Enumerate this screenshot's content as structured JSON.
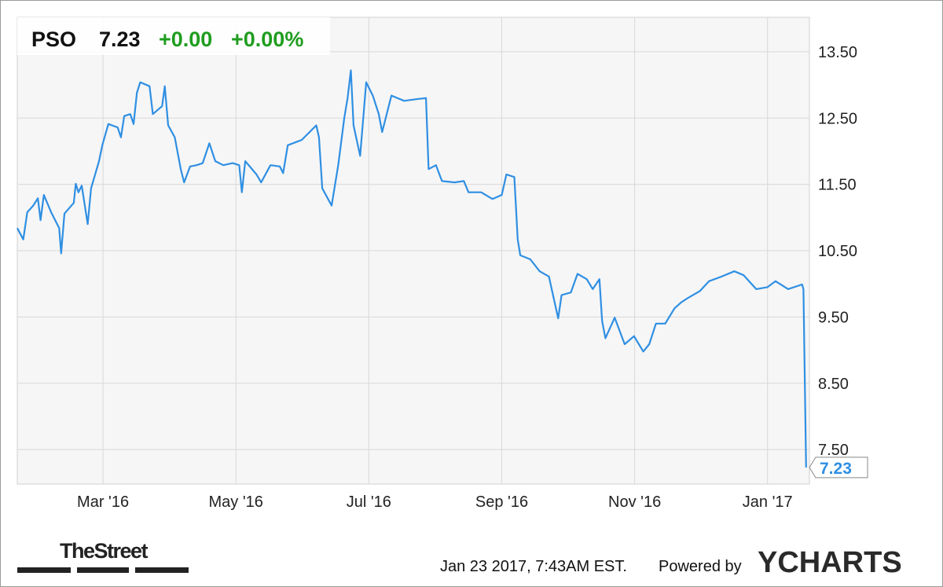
{
  "chart_data": {
    "type": "line",
    "ticker": "PSO",
    "price": 7.23,
    "change": "+0.00",
    "change_pct": "+0.00%",
    "timestamp": "Jan 23 2017, 7:43AM EST.",
    "powered_by": "Powered by",
    "brand": "YCHARTS",
    "source": "TheStreet",
    "grid": true,
    "color": "#2f8fe3",
    "xlim": [
      0.71,
      12.63
    ],
    "xticks": [
      {
        "value": 2,
        "label": "Mar '16"
      },
      {
        "value": 4,
        "label": "May '16"
      },
      {
        "value": 6,
        "label": "Jul '16"
      },
      {
        "value": 8,
        "label": "Sep '16"
      },
      {
        "value": 10,
        "label": "Nov '16"
      },
      {
        "value": 12,
        "label": "Jan '17"
      }
    ],
    "ylim": [
      6.98,
      14.02
    ],
    "yticks": [
      {
        "value": 7.5,
        "label": "7.50"
      },
      {
        "value": 8.5,
        "label": "8.50"
      },
      {
        "value": 9.5,
        "label": "9.50"
      },
      {
        "value": 10.5,
        "label": "10.50"
      },
      {
        "value": 11.5,
        "label": "11.50"
      },
      {
        "value": 12.5,
        "label": "12.50"
      },
      {
        "value": 13.5,
        "label": "13.50"
      }
    ],
    "x": [
      0.71,
      0.8,
      0.86,
      0.95,
      1.02,
      1.06,
      1.11,
      1.22,
      1.34,
      1.37,
      1.42,
      1.56,
      1.59,
      1.63,
      1.68,
      1.77,
      1.82,
      1.94,
      1.99,
      2.08,
      2.22,
      2.27,
      2.32,
      2.41,
      2.46,
      2.51,
      2.56,
      2.7,
      2.75,
      2.89,
      2.93,
      2.98,
      3.08,
      3.17,
      3.22,
      3.31,
      3.41,
      3.5,
      3.6,
      3.69,
      3.81,
      3.95,
      4.05,
      4.09,
      4.14,
      4.31,
      4.38,
      4.52,
      4.66,
      4.71,
      4.78,
      4.99,
      5.21,
      5.25,
      5.3,
      5.44,
      5.54,
      5.63,
      5.68,
      5.73,
      5.77,
      5.87,
      5.96,
      6.06,
      6.15,
      6.2,
      6.34,
      6.53,
      6.75,
      6.86,
      6.9,
      7.01,
      7.1,
      7.29,
      7.43,
      7.5,
      7.69,
      7.86,
      8.0,
      8.07,
      8.19,
      8.24,
      8.28,
      8.43,
      8.57,
      8.71,
      8.85,
      8.9,
      9.04,
      9.14,
      9.28,
      9.37,
      9.47,
      9.51,
      9.56,
      9.7,
      9.85,
      9.99,
      10.13,
      10.22,
      10.32,
      10.46,
      10.6,
      10.7,
      10.79,
      10.98,
      11.12,
      11.31,
      11.5,
      11.64,
      11.83,
      12.0,
      12.12,
      12.31,
      12.52,
      12.54,
      12.58
    ],
    "values": [
      10.84,
      10.67,
      11.08,
      11.18,
      11.29,
      10.96,
      11.34,
      11.08,
      10.84,
      10.46,
      11.06,
      11.22,
      11.51,
      11.38,
      11.48,
      10.9,
      11.44,
      11.85,
      12.09,
      12.41,
      12.36,
      12.21,
      12.53,
      12.56,
      12.41,
      12.88,
      13.04,
      12.98,
      12.56,
      12.68,
      12.98,
      12.39,
      12.21,
      11.73,
      11.53,
      11.77,
      11.79,
      11.82,
      12.12,
      11.85,
      11.79,
      11.82,
      11.79,
      11.38,
      11.85,
      11.65,
      11.53,
      11.79,
      11.77,
      11.67,
      12.09,
      12.17,
      12.39,
      12.21,
      11.44,
      11.18,
      11.79,
      12.5,
      12.8,
      13.22,
      12.39,
      11.93,
      13.04,
      12.84,
      12.56,
      12.29,
      12.84,
      12.76,
      12.79,
      12.8,
      11.73,
      11.79,
      11.55,
      11.53,
      11.55,
      11.38,
      11.38,
      11.28,
      11.34,
      11.65,
      11.61,
      10.67,
      10.43,
      10.37,
      10.19,
      10.11,
      9.48,
      9.83,
      9.87,
      10.15,
      10.07,
      9.92,
      10.07,
      9.44,
      9.18,
      9.49,
      9.09,
      9.21,
      8.98,
      9.09,
      9.4,
      9.4,
      9.63,
      9.72,
      9.78,
      9.89,
      10.04,
      10.11,
      10.19,
      10.13,
      9.92,
      9.95,
      10.04,
      9.92,
      9.99,
      9.92,
      7.23
    ]
  }
}
